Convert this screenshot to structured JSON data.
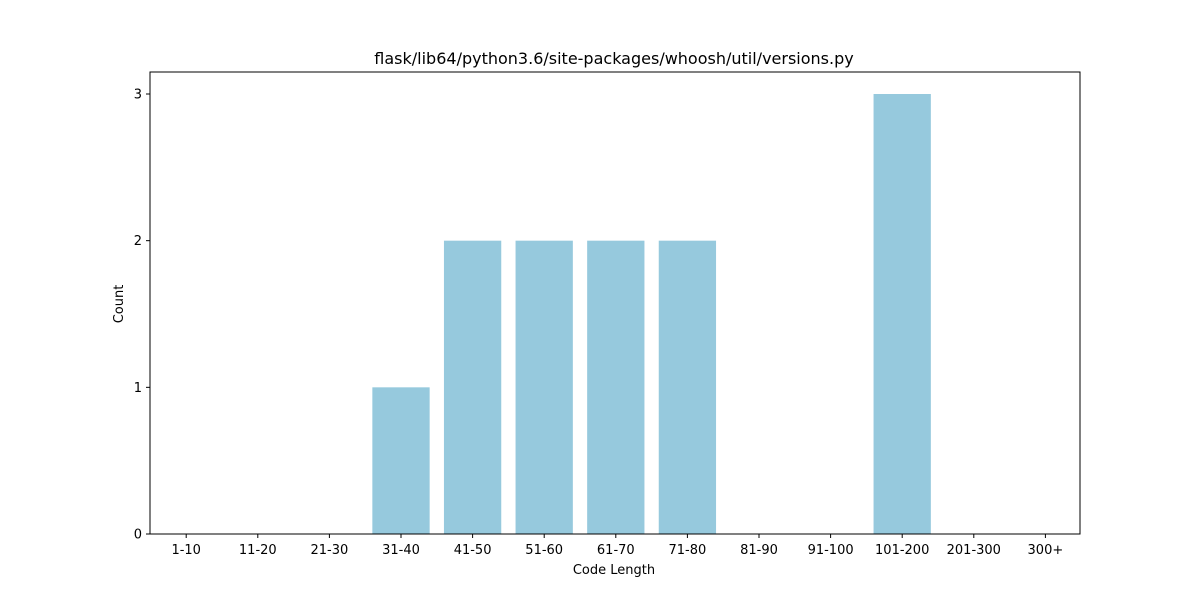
{
  "chart_data": {
    "type": "bar",
    "title": "flask/lib64/python3.6/site-packages/whoosh/util/versions.py",
    "xlabel": "Code Length",
    "ylabel": "Count",
    "categories": [
      "1-10",
      "11-20",
      "21-30",
      "31-40",
      "41-50",
      "51-60",
      "61-70",
      "71-80",
      "81-90",
      "91-100",
      "101-200",
      "201-300",
      "300+"
    ],
    "values": [
      0,
      0,
      0,
      1,
      2,
      2,
      2,
      2,
      0,
      0,
      3,
      0,
      0
    ],
    "ylim": [
      0,
      3.15
    ],
    "yticks": [
      0,
      1,
      2,
      3
    ],
    "bar_color": "#96c9dd",
    "grid": false,
    "legend": "none"
  }
}
